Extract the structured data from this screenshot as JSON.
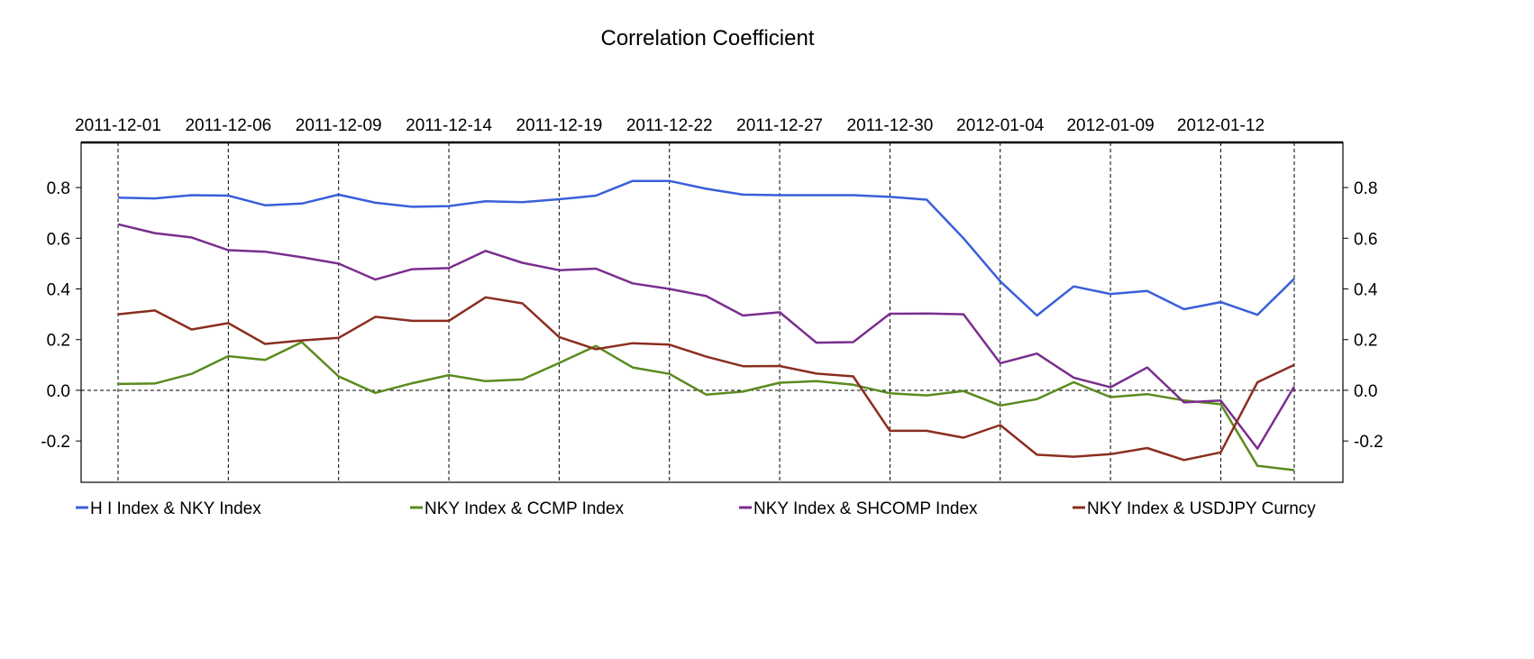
{
  "chart_data": {
    "type": "line",
    "title": "Correlation Coefficient",
    "xlabel": "",
    "ylabel": "",
    "ylim": [
      -0.363,
      0.978
    ],
    "yticks": [
      -0.2,
      0.0,
      0.2,
      0.4,
      0.6,
      0.8
    ],
    "ytick_labels": [
      "-0.2",
      "0.0",
      "0.2",
      "0.4",
      "0.6",
      "0.8"
    ],
    "x_count": 33,
    "xtick_every": 3,
    "xtick_labels": [
      "2011-12-01",
      "2011-12-06",
      "2011-12-09",
      "2011-12-14",
      "2011-12-19",
      "2011-12-22",
      "2011-12-27",
      "2011-12-30",
      "2012-01-04",
      "2012-01-09",
      "2012-01-12"
    ],
    "grid": "dashed vertical at x ticks, dashed horizontal at 0",
    "legend_position": "bottom",
    "series": [
      {
        "name": "H I Index & NKY Index",
        "color": "#3a5fd9",
        "values": [
          0.76,
          0.757,
          0.77,
          0.768,
          0.73,
          0.737,
          0.772,
          0.74,
          0.724,
          0.727,
          0.746,
          0.742,
          0.754,
          0.768,
          0.826,
          0.826,
          0.795,
          0.772,
          0.77,
          0.77,
          0.77,
          0.763,
          0.752,
          0.6,
          0.43,
          0.295,
          0.41,
          0.38,
          0.392,
          0.32,
          0.348,
          0.298,
          0.44
        ]
      },
      {
        "name": "NKY Index & CCMP Index",
        "color": "#5b8a1e",
        "values": [
          0.025,
          0.027,
          0.065,
          0.135,
          0.12,
          0.19,
          0.055,
          -0.01,
          0.028,
          0.06,
          0.036,
          0.043,
          0.108,
          0.175,
          0.09,
          0.065,
          -0.017,
          -0.005,
          0.03,
          0.036,
          0.022,
          -0.012,
          -0.02,
          -0.003,
          -0.06,
          -0.035,
          0.032,
          -0.027,
          -0.015,
          -0.04,
          -0.055,
          -0.298,
          -0.315
        ]
      },
      {
        "name": "NKY Index & SHCOMP Index",
        "color": "#7a2e8e",
        "values": [
          0.655,
          0.62,
          0.603,
          0.553,
          0.547,
          0.525,
          0.5,
          0.437,
          0.478,
          0.482,
          0.55,
          0.503,
          0.474,
          0.48,
          0.422,
          0.4,
          0.372,
          0.295,
          0.308,
          0.188,
          0.19,
          0.302,
          0.303,
          0.3,
          0.107,
          0.145,
          0.05,
          0.012,
          0.09,
          -0.048,
          -0.04,
          -0.23,
          0.015
        ]
      },
      {
        "name": "NKY Index & USDJPY Curncy",
        "color": "#8b2e1f",
        "values": [
          0.3,
          0.315,
          0.24,
          0.265,
          0.183,
          0.197,
          0.207,
          0.29,
          0.274,
          0.274,
          0.367,
          0.343,
          0.21,
          0.162,
          0.186,
          0.18,
          0.133,
          0.095,
          0.096,
          0.066,
          0.055,
          -0.16,
          -0.16,
          -0.187,
          -0.137,
          -0.254,
          -0.262,
          -0.252,
          -0.228,
          -0.275,
          -0.245,
          0.032,
          0.1
        ]
      }
    ]
  }
}
